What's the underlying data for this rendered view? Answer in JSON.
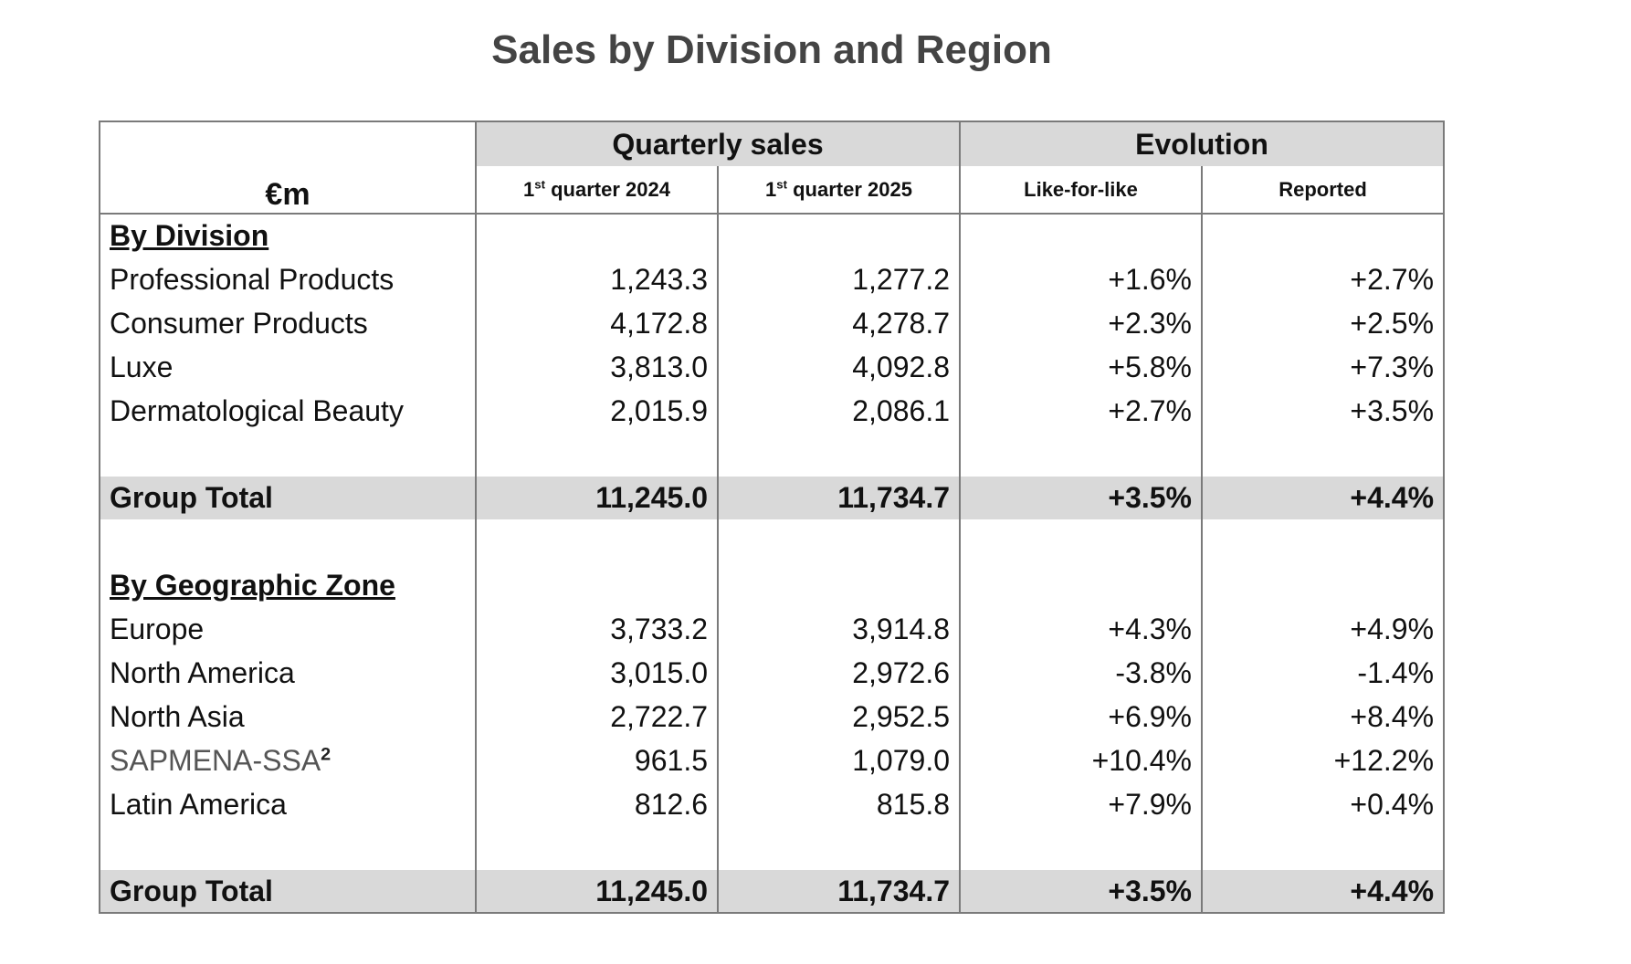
{
  "title": "Sales by Division and Region",
  "header": {
    "unit": "€m",
    "group_quarterly": "Quarterly sales",
    "group_evolution": "Evolution",
    "col_q2024_num": "1",
    "col_q2024_sup": "st",
    "col_q2024_text": " quarter 2024",
    "col_q2025_num": "1",
    "col_q2025_sup": "st",
    "col_q2025_text": " quarter 2025",
    "col_lfl": "Like-for-like",
    "col_reported": "Reported"
  },
  "by_division": {
    "heading": "By Division",
    "rows": [
      {
        "name": "Professional Products",
        "q2024": "1,243.3",
        "q2025": "1,277.2",
        "lfl": "+1.6%",
        "reported": "+2.7%"
      },
      {
        "name": "Consumer Products",
        "q2024": "4,172.8",
        "q2025": "4,278.7",
        "lfl": "+2.3%",
        "reported": "+2.5%"
      },
      {
        "name": "Luxe",
        "q2024": "3,813.0",
        "q2025": "4,092.8",
        "lfl": "+5.8%",
        "reported": "+7.3%"
      },
      {
        "name": "Dermatological Beauty",
        "q2024": "2,015.9",
        "q2025": "2,086.1",
        "lfl": "+2.7%",
        "reported": "+3.5%"
      }
    ],
    "total": {
      "name": "Group Total",
      "q2024": "11,245.0",
      "q2025": "11,734.7",
      "lfl": "+3.5%",
      "reported": "+4.4%"
    }
  },
  "by_zone": {
    "heading": "By Geographic Zone",
    "rows": [
      {
        "name": "Europe",
        "q2024": "3,733.2",
        "q2025": "3,914.8",
        "lfl": "+4.3%",
        "reported": "+4.9%"
      },
      {
        "name": "North America",
        "q2024": "3,015.0",
        "q2025": "2,972.6",
        "lfl": "-3.8%",
        "reported": "-1.4%"
      },
      {
        "name": "North Asia",
        "q2024": "2,722.7",
        "q2025": "2,952.5",
        "lfl": "+6.9%",
        "reported": "+8.4%"
      },
      {
        "name": "SAPMENA-SSA",
        "name_sup": "2",
        "q2024": "961.5",
        "q2025": "1,079.0",
        "lfl": "+10.4%",
        "reported": "+12.2%"
      },
      {
        "name": "Latin America",
        "q2024": "812.6",
        "q2025": "815.8",
        "lfl": "+7.9%",
        "reported": "+0.4%"
      }
    ],
    "total": {
      "name": "Group Total",
      "q2024": "11,245.0",
      "q2025": "11,734.7",
      "lfl": "+3.5%",
      "reported": "+4.4%"
    }
  }
}
